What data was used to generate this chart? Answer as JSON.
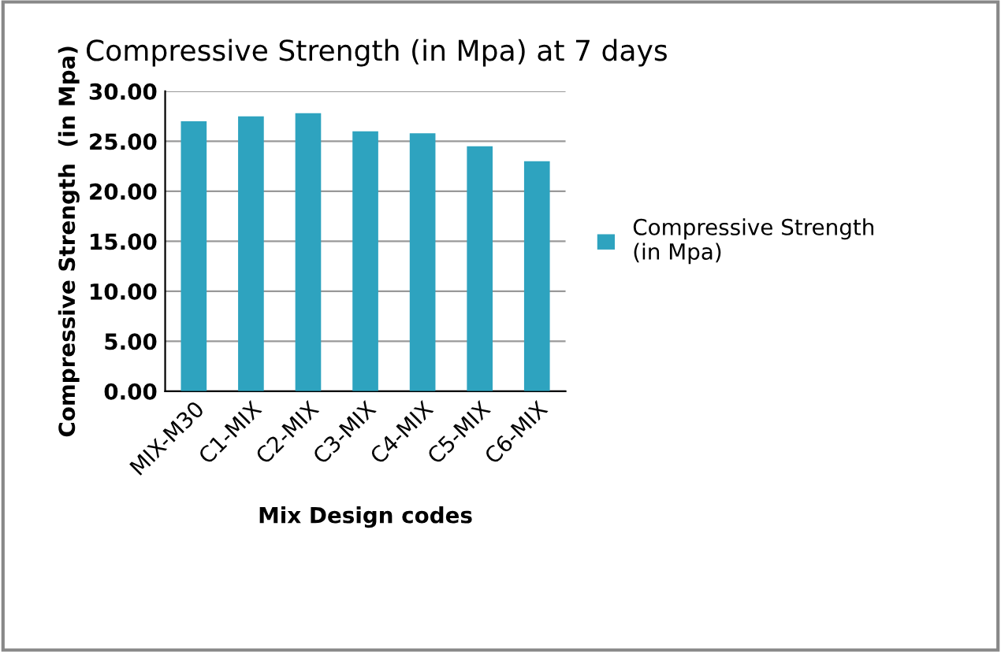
{
  "chart_data": {
    "type": "bar",
    "title": "Compressive Strength (in Mpa) at 7 days",
    "xlabel": "Mix Design codes",
    "ylabel": "Compressive Strength  (in Mpa)",
    "categories": [
      "MIX-M30",
      "C1-MIX",
      "C2-MIX",
      "C3-MIX",
      "C4-MIX",
      "C5-MIX",
      "C6-MIX"
    ],
    "series": [
      {
        "name": "Compressive Strength (in Mpa)",
        "color": "#2ea3bf",
        "values": [
          27.0,
          27.5,
          27.8,
          26.0,
          25.8,
          24.5,
          23.0
        ]
      }
    ],
    "ylim": [
      0,
      30
    ],
    "yticks": [
      {
        "value": 0,
        "label": "0.00"
      },
      {
        "value": 5,
        "label": "5.00"
      },
      {
        "value": 10,
        "label": "10.00"
      },
      {
        "value": 15,
        "label": "15.00"
      },
      {
        "value": 20,
        "label": "20.00"
      },
      {
        "value": 25,
        "label": "25.00"
      },
      {
        "value": 30,
        "label": "30.00"
      }
    ],
    "grid": "y",
    "legend": "right"
  }
}
